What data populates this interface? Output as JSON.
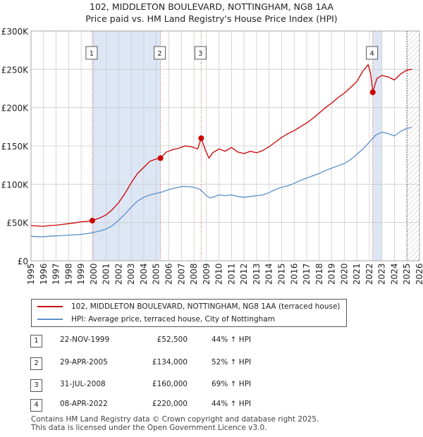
{
  "title_line1": "102, MIDDLETON BOULEVARD, NOTTINGHAM, NG8 1AA",
  "title_line2": "Price paid vs. HM Land Registry's House Price Index (HPI)",
  "colors": {
    "property": "#cc0000",
    "hpi": "#5b8ec9",
    "shade": "#dde6f5",
    "grid": "#cccccc",
    "vline": "#e07070"
  },
  "legend": {
    "property_label": "102, MIDDLETON BOULEVARD, NOTTINGHAM, NG8 1AA (terraced house)",
    "hpi_label": "HPI: Average price, terraced house, City of Nottingham"
  },
  "transactions": [
    {
      "num": "1",
      "date": "22-NOV-1999",
      "price": "£52,500",
      "hpi": "44% ↑ HPI"
    },
    {
      "num": "2",
      "date": "29-APR-2005",
      "price": "£134,000",
      "hpi": "52% ↑ HPI"
    },
    {
      "num": "3",
      "date": "31-JUL-2008",
      "price": "£160,000",
      "hpi": "69% ↑ HPI"
    },
    {
      "num": "4",
      "date": "08-APR-2022",
      "price": "£220,000",
      "hpi": "44% ↑ HPI"
    }
  ],
  "footer_line1": "Contains HM Land Registry data © Crown copyright and database right 2025.",
  "footer_line2": "This data is licensed under the Open Government Licence v3.0.",
  "chart_data": {
    "type": "line",
    "title": "102, MIDDLETON BOULEVARD, NOTTINGHAM, NG8 1AA — Price paid vs. HM Land Registry's House Price Index (HPI)",
    "xlabel": "",
    "ylabel": "",
    "xlim": [
      1995,
      2026
    ],
    "ylim": [
      0,
      300000
    ],
    "x_ticks": [
      1995,
      1996,
      1997,
      1998,
      1999,
      2000,
      2001,
      2002,
      2003,
      2004,
      2005,
      2006,
      2007,
      2008,
      2009,
      2010,
      2011,
      2012,
      2013,
      2014,
      2015,
      2016,
      2017,
      2018,
      2019,
      2020,
      2021,
      2022,
      2023,
      2024,
      2025,
      2026
    ],
    "y_ticks": [
      {
        "value": 0,
        "label": "£0"
      },
      {
        "value": 50000,
        "label": "£50K"
      },
      {
        "value": 100000,
        "label": "£100K"
      },
      {
        "value": 150000,
        "label": "£150K"
      },
      {
        "value": 200000,
        "label": "£200K"
      },
      {
        "value": 250000,
        "label": "£250K"
      },
      {
        "value": 300000,
        "label": "£300K"
      }
    ],
    "grid": true,
    "shaded_ranges": [
      [
        1999.89,
        2005.33
      ],
      [
        2022.27,
        2023.0
      ]
    ],
    "hatched_range": [
      2025.0,
      2026.0
    ],
    "sales": [
      {
        "label": "1",
        "x": 1999.89,
        "y": 52500
      },
      {
        "label": "2",
        "x": 2005.33,
        "y": 134000
      },
      {
        "label": "3",
        "x": 2008.58,
        "y": 160000
      },
      {
        "label": "4",
        "x": 2022.27,
        "y": 220000
      }
    ],
    "series": [
      {
        "name": "102, MIDDLETON BOULEVARD, NOTTINGHAM, NG8 1AA (terraced house)",
        "x": [
          1995,
          1995.5,
          1996,
          1996.5,
          1997,
          1997.5,
          1998,
          1998.5,
          1999,
          1999.5,
          1999.89,
          2000.5,
          2001,
          2001.5,
          2002,
          2002.5,
          2003,
          2003.5,
          2004,
          2004.5,
          2005,
          2005.33,
          2005.8,
          2006.3,
          2006.8,
          2007.3,
          2007.8,
          2008.3,
          2008.58,
          2008.9,
          2009.2,
          2009.5,
          2010,
          2010.5,
          2011,
          2011.5,
          2012,
          2012.5,
          2013,
          2013.5,
          2014,
          2014.5,
          2015,
          2015.5,
          2016,
          2016.5,
          2017,
          2017.5,
          2018,
          2018.5,
          2019,
          2019.5,
          2020,
          2020.5,
          2021,
          2021.5,
          2021.9,
          2022.1,
          2022.27,
          2022.6,
          2023,
          2023.5,
          2024,
          2024.5,
          2025,
          2025.4
        ],
        "values": [
          46000,
          45500,
          45000,
          46000,
          46500,
          47500,
          48500,
          49500,
          51000,
          51500,
          52500,
          56000,
          60000,
          67000,
          76000,
          88000,
          102000,
          114000,
          122000,
          130000,
          133000,
          134000,
          142000,
          145000,
          147000,
          150000,
          149000,
          146000,
          160000,
          145000,
          134000,
          141000,
          146000,
          143000,
          148000,
          142000,
          140000,
          143000,
          141000,
          144000,
          149000,
          155000,
          161000,
          166000,
          170000,
          175000,
          180000,
          186000,
          193000,
          200000,
          206000,
          213000,
          219000,
          226000,
          234000,
          248000,
          256000,
          245000,
          220000,
          238000,
          242000,
          240000,
          236000,
          244000,
          249000,
          250000
        ]
      },
      {
        "name": "HPI: Average price, terraced house, City of Nottingham",
        "x": [
          1995,
          1995.5,
          1996,
          1996.5,
          1997,
          1997.5,
          1998,
          1998.5,
          1999,
          1999.5,
          2000,
          2000.5,
          2001,
          2001.5,
          2002,
          2002.5,
          2003,
          2003.5,
          2004,
          2004.5,
          2005,
          2005.5,
          2006,
          2006.5,
          2007,
          2007.5,
          2008,
          2008.5,
          2009,
          2009.3,
          2009.7,
          2010,
          2010.5,
          2011,
          2011.5,
          2012,
          2012.5,
          2013,
          2013.5,
          2014,
          2014.5,
          2015,
          2015.5,
          2016,
          2016.5,
          2017,
          2017.5,
          2018,
          2018.5,
          2019,
          2019.5,
          2020,
          2020.5,
          2021,
          2021.5,
          2022,
          2022.5,
          2023,
          2023.5,
          2024,
          2024.5,
          2025,
          2025.4
        ],
        "values": [
          32000,
          31500,
          31500,
          32000,
          32500,
          33000,
          33500,
          34000,
          34500,
          35500,
          37000,
          39000,
          41500,
          46000,
          53000,
          61000,
          70000,
          78000,
          83000,
          86000,
          88000,
          90000,
          93000,
          95000,
          97000,
          97000,
          96000,
          93000,
          85000,
          82000,
          84000,
          86000,
          85000,
          86000,
          84000,
          83000,
          84000,
          85000,
          86000,
          89000,
          93000,
          96000,
          98000,
          101000,
          105000,
          108000,
          111000,
          114000,
          118000,
          121000,
          124000,
          127000,
          132000,
          139000,
          146000,
          155000,
          164000,
          168000,
          166000,
          163000,
          169000,
          173000,
          174000
        ]
      }
    ]
  }
}
